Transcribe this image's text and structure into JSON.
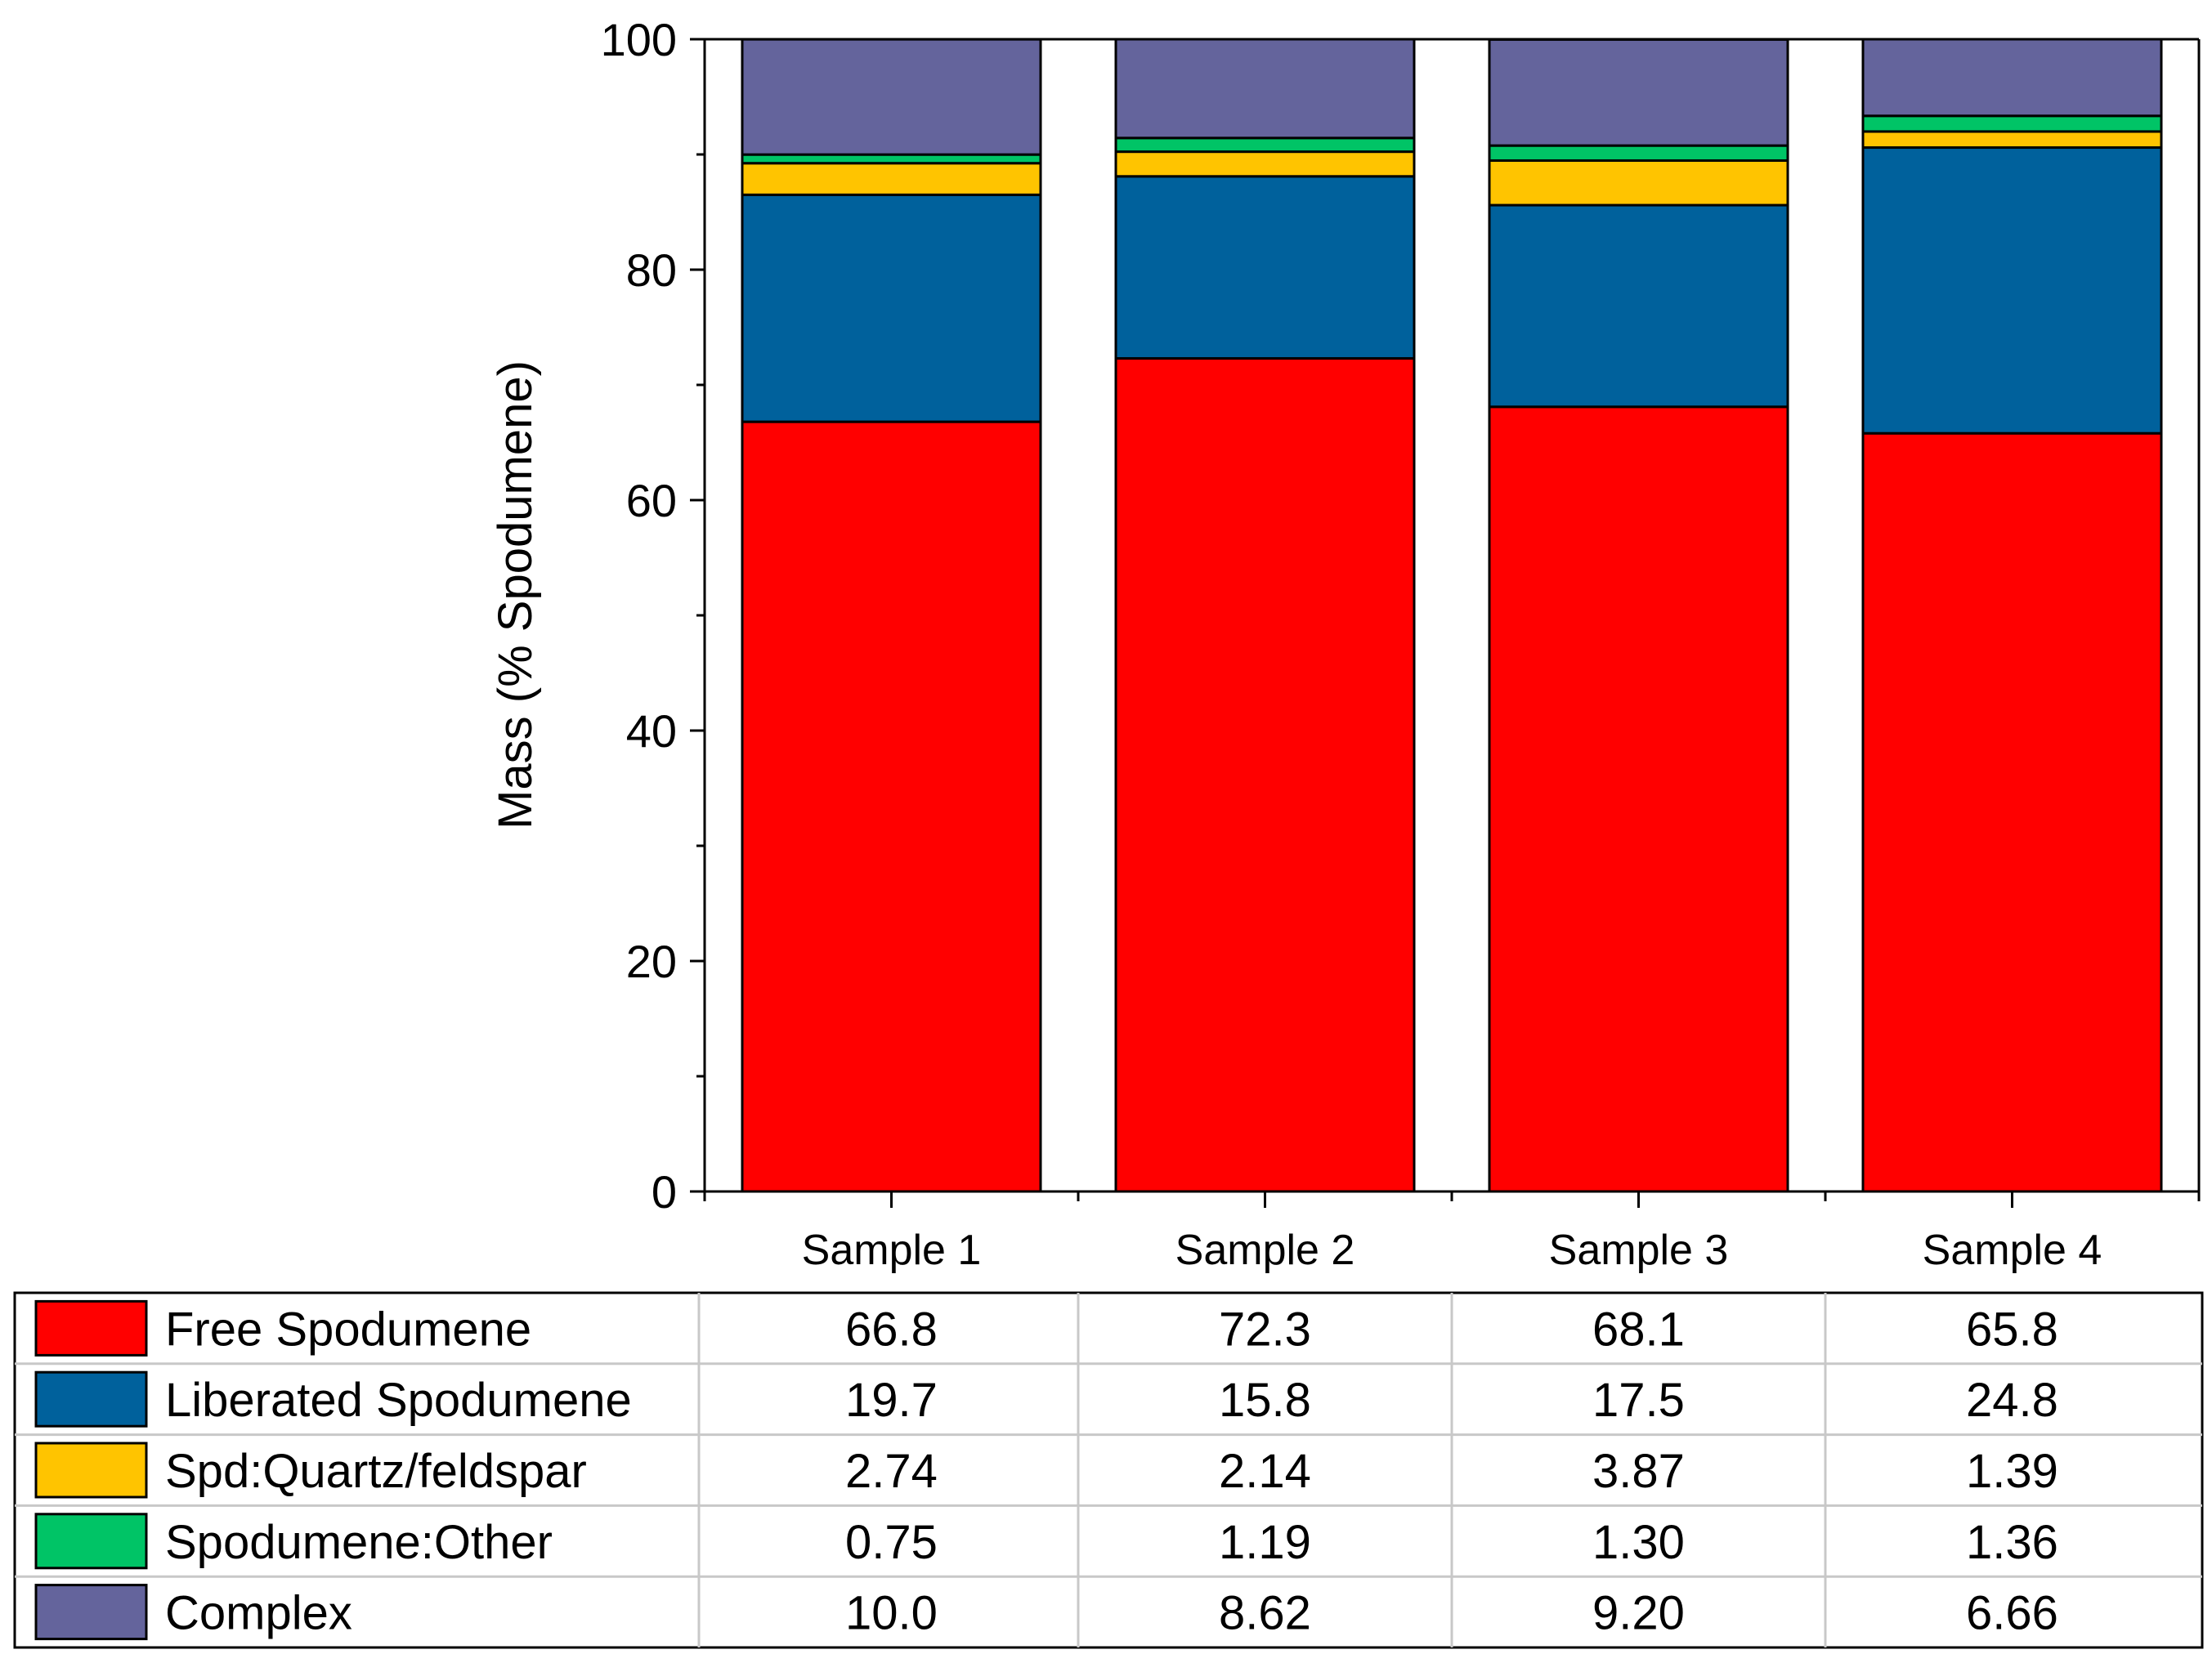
{
  "chart_data": {
    "type": "bar",
    "stacked": true,
    "title": "",
    "xlabel": "",
    "ylabel": "Mass (% Spodumene)",
    "ylim": [
      0,
      100
    ],
    "yticks": [
      "0",
      "20",
      "40",
      "60",
      "80",
      "100"
    ],
    "categories": [
      "Sample 1",
      "Sample 2",
      "Sample 3",
      "Sample 4"
    ],
    "series": [
      {
        "name": "Free Spodumene",
        "color": "#ff0000",
        "values": [
          66.8,
          72.3,
          68.1,
          65.8
        ],
        "labels": [
          "66.8",
          "72.3",
          "68.1",
          "65.8"
        ]
      },
      {
        "name": "Liberated Spodumene",
        "color": "#00619c",
        "values": [
          19.7,
          15.8,
          17.5,
          24.8
        ],
        "labels": [
          "19.7",
          "15.8",
          "17.5",
          "24.8"
        ]
      },
      {
        "name": "Spd:Quartz/feldspar",
        "color": "#ffc400",
        "values": [
          2.74,
          2.14,
          3.87,
          1.39
        ],
        "labels": [
          "2.74",
          "2.14",
          "3.87",
          "1.39"
        ]
      },
      {
        "name": "Spodumene:Other",
        "color": "#00c466",
        "values": [
          0.75,
          1.19,
          1.3,
          1.36
        ],
        "labels": [
          "0.75",
          "1.19",
          "1.30",
          "1.36"
        ]
      },
      {
        "name": "Complex",
        "color": "#64649c",
        "values": [
          10.0,
          8.62,
          9.2,
          6.66
        ],
        "labels": [
          "10.0",
          "8.62",
          "9.20",
          "6.66"
        ]
      }
    ],
    "legend": "table-below"
  }
}
